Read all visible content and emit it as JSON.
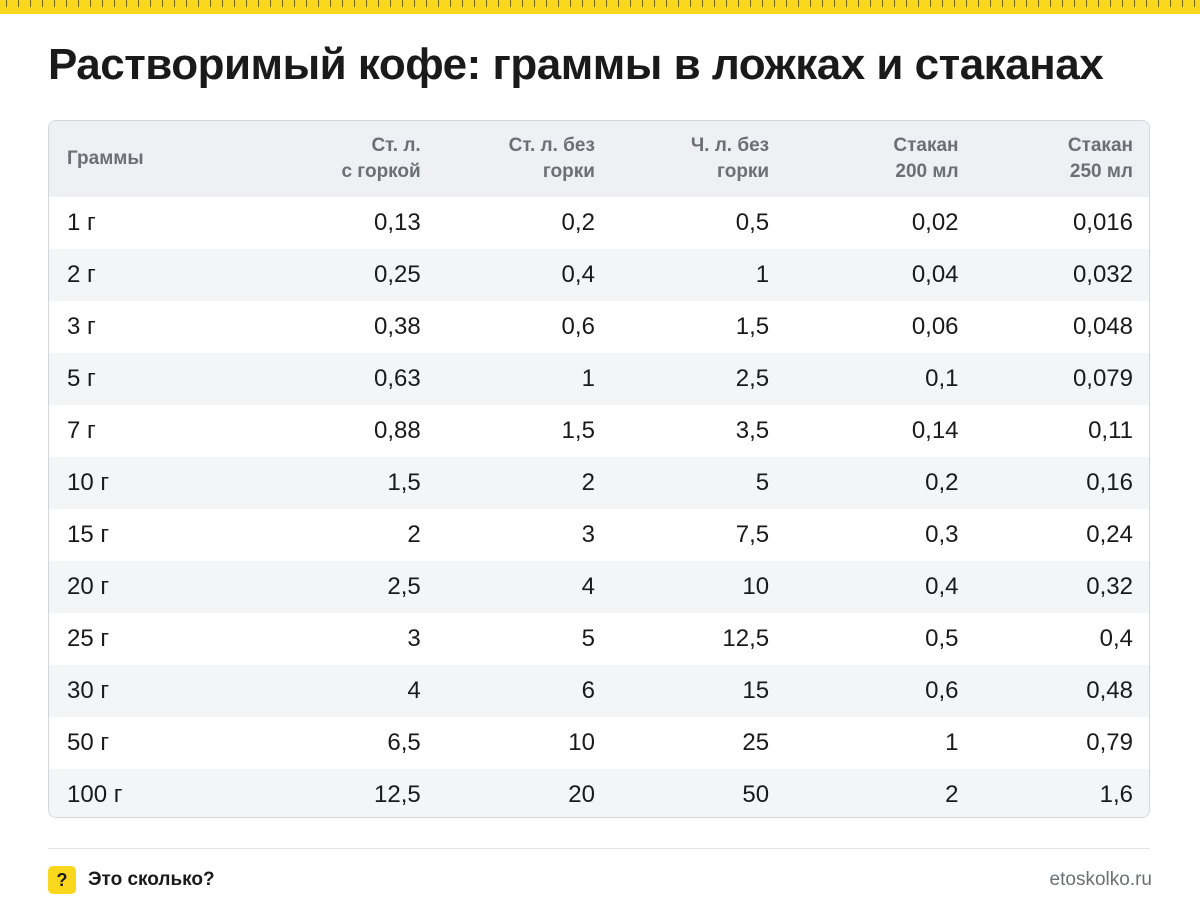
{
  "title": "Растворимый кофе: граммы в ложках и стаканах",
  "table": {
    "columns": [
      "Граммы",
      "Ст. л.\nс горкой",
      "Ст. л. без\nгорки",
      "Ч. л. без\nгорки",
      "Стакан\n200 мл",
      "Стакан\n250 мл"
    ],
    "rows": [
      [
        "1 г",
        "0,13",
        "0,2",
        "0,5",
        "0,02",
        "0,016"
      ],
      [
        "2 г",
        "0,25",
        "0,4",
        "1",
        "0,04",
        "0,032"
      ],
      [
        "3 г",
        "0,38",
        "0,6",
        "1,5",
        "0,06",
        "0,048"
      ],
      [
        "5 г",
        "0,63",
        "1",
        "2,5",
        "0,1",
        "0,079"
      ],
      [
        "7 г",
        "0,88",
        "1,5",
        "3,5",
        "0,14",
        "0,11"
      ],
      [
        "10 г",
        "1,5",
        "2",
        "5",
        "0,2",
        "0,16"
      ],
      [
        "15 г",
        "2",
        "3",
        "7,5",
        "0,3",
        "0,24"
      ],
      [
        "20 г",
        "2,5",
        "4",
        "10",
        "0,4",
        "0,32"
      ],
      [
        "25 г",
        "3",
        "5",
        "12,5",
        "0,5",
        "0,4"
      ],
      [
        "30 г",
        "4",
        "6",
        "15",
        "0,6",
        "0,48"
      ],
      [
        "50 г",
        "6,5",
        "10",
        "25",
        "1",
        "0,79"
      ],
      [
        "100 г",
        "12,5",
        "20",
        "50",
        "2",
        "1,6"
      ]
    ]
  },
  "footer": {
    "logo_symbol": "?",
    "brand": "Это сколько?",
    "site": "etoskolko.ru"
  },
  "colors": {
    "accent_yellow": "#f9d71c",
    "header_bg": "#eef0f3",
    "stripe_bg": "#f4f5f7",
    "muted_text": "#6b7075"
  }
}
